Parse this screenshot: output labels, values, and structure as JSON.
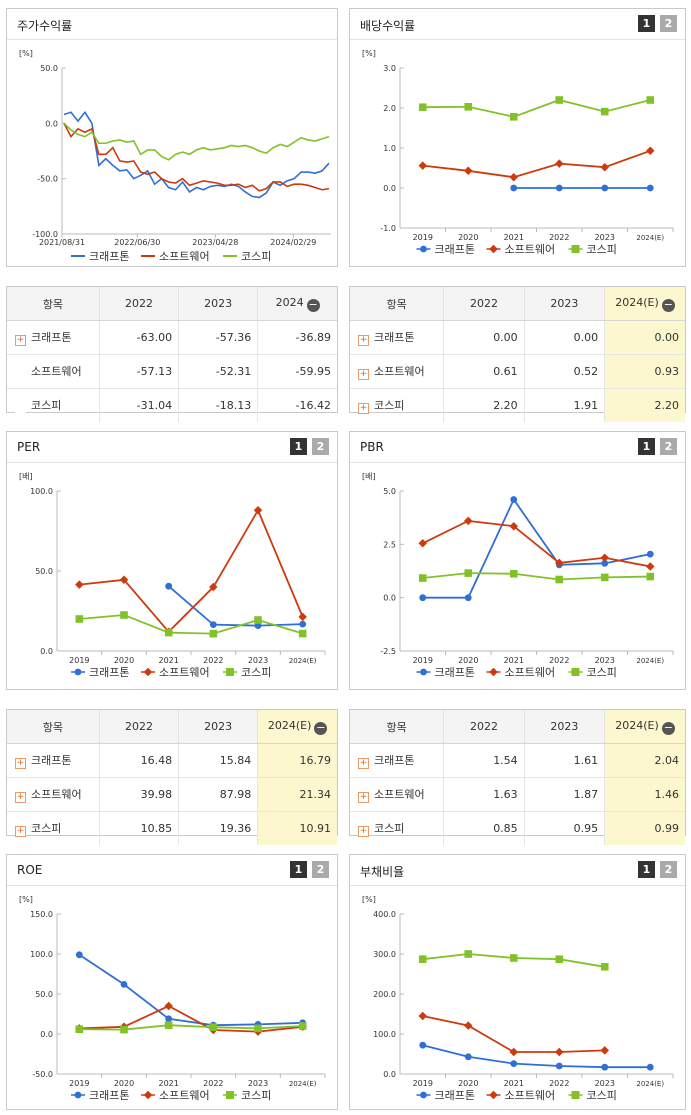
{
  "colors": {
    "kraf": "#2f6fd6",
    "soft": "#cc3a0e",
    "kospi": "#82c228"
  },
  "legend": [
    "크래프톤",
    "소프트웨어",
    "코스피"
  ],
  "pager": [
    "1",
    "2"
  ],
  "charts": [
    {
      "id": "stock",
      "title": "주가수익률",
      "pager": false,
      "chart_data": {
        "type": "line",
        "unit": "[%]",
        "ylim": [
          -100,
          50
        ],
        "yticks": [
          "50.0",
          "0.0",
          "-50.0",
          "-100.0"
        ],
        "xticks": [
          "2021/08/31",
          "2022/06/30",
          "2023/04/28",
          "2024/02/29"
        ],
        "series": [
          {
            "name": "크래프톤",
            "values": [
              8,
              10,
              2,
              10,
              0,
              -38,
              -32,
              -38,
              -43,
              -42,
              -50,
              -47,
              -43,
              -55,
              -50,
              -58,
              -60,
              -53,
              -62,
              -58,
              -60,
              -57,
              -56,
              -57,
              -55,
              -57,
              -62,
              -66,
              -67,
              -63,
              -53,
              -56,
              -52,
              -50,
              -44,
              -44,
              -45,
              -43,
              -36
            ]
          },
          {
            "name": "소프트웨어",
            "values": [
              0,
              -12,
              -5,
              -8,
              -5,
              -28,
              -28,
              -22,
              -34,
              -35,
              -34,
              -44,
              -46,
              -44,
              -50,
              -53,
              -54,
              -50,
              -56,
              -54,
              -52,
              -53,
              -54,
              -56,
              -56,
              -55,
              -58,
              -56,
              -61,
              -59,
              -53,
              -53,
              -57,
              -55,
              -55,
              -56,
              -58,
              -60,
              -59
            ]
          },
          {
            "name": "코스피",
            "values": [
              0,
              -6,
              -10,
              -12,
              -8,
              -18,
              -18,
              -16,
              -15,
              -17,
              -16,
              -28,
              -24,
              -24,
              -30,
              -33,
              -28,
              -26,
              -28,
              -24,
              -22,
              -24,
              -23,
              -22,
              -20,
              -21,
              -20,
              -22,
              -25,
              -27,
              -22,
              -19,
              -21,
              -17,
              -13,
              -15,
              -16,
              -14,
              -12
            ]
          }
        ]
      }
    },
    {
      "id": "div",
      "title": "배당수익률",
      "pager": true,
      "chart_data": {
        "type": "line",
        "unit": "[%]",
        "ylim": [
          -1,
          3
        ],
        "yticks": [
          "3.0",
          "2.0",
          "1.0",
          "0.0",
          "-1.0"
        ],
        "categories": [
          "2019",
          "2020",
          "2021",
          "2022",
          "2023",
          "2024(E)"
        ],
        "series": [
          {
            "name": "크래프톤",
            "values": [
              null,
              null,
              0.0,
              0.0,
              0.0,
              0.0
            ]
          },
          {
            "name": "소프트웨어",
            "values": [
              0.56,
              0.43,
              0.27,
              0.61,
              0.52,
              0.93
            ]
          },
          {
            "name": "코스피",
            "values": [
              2.02,
              2.03,
              1.78,
              2.2,
              1.91,
              2.2
            ]
          }
        ]
      }
    },
    {
      "id": "per",
      "title": "PER",
      "pager": true,
      "chart_data": {
        "type": "line",
        "unit": "[배]",
        "ylim": [
          0,
          100
        ],
        "yticks": [
          "100.0",
          "50.0",
          "0.0"
        ],
        "categories": [
          "2019",
          "2020",
          "2021",
          "2022",
          "2023",
          "2024(E)"
        ],
        "series": [
          {
            "name": "크래프톤",
            "values": [
              null,
              null,
              40.5,
              16.48,
              15.84,
              16.79
            ]
          },
          {
            "name": "소프트웨어",
            "values": [
              41.5,
              44.5,
              12.0,
              39.98,
              87.98,
              21.34
            ]
          },
          {
            "name": "코스피",
            "values": [
              20.0,
              22.5,
              11.5,
              10.85,
              19.36,
              10.91
            ]
          }
        ]
      }
    },
    {
      "id": "pbr",
      "title": "PBR",
      "pager": true,
      "chart_data": {
        "type": "line",
        "unit": "[배]",
        "ylim": [
          -2.5,
          5
        ],
        "yticks": [
          "5.0",
          "2.5",
          "0.0",
          "-2.5"
        ],
        "categories": [
          "2019",
          "2020",
          "2021",
          "2022",
          "2023",
          "2024(E)"
        ],
        "series": [
          {
            "name": "크래프톤",
            "values": [
              0.0,
              0.0,
              4.6,
              1.54,
              1.61,
              2.04
            ]
          },
          {
            "name": "소프트웨어",
            "values": [
              2.55,
              3.6,
              3.35,
              1.63,
              1.87,
              1.46
            ]
          },
          {
            "name": "코스피",
            "values": [
              0.92,
              1.15,
              1.12,
              0.85,
              0.95,
              0.99
            ]
          }
        ]
      }
    },
    {
      "id": "roe",
      "title": "ROE",
      "pager": true,
      "chart_data": {
        "type": "line",
        "unit": "[%]",
        "ylim": [
          -50,
          150
        ],
        "yticks": [
          "150.0",
          "100.0",
          "50.0",
          "0.0",
          "-50.0"
        ],
        "categories": [
          "2019",
          "2020",
          "2021",
          "2022",
          "2023",
          "2024(E)"
        ],
        "series": [
          {
            "name": "크래프톤",
            "values": [
              99,
              62,
              19,
              11,
              12,
              14
            ]
          },
          {
            "name": "소프트웨어",
            "values": [
              7,
              9,
              35,
              5,
              3,
              9
            ]
          },
          {
            "name": "코스피",
            "values": [
              6,
              5.5,
              11,
              8.5,
              7,
              10
            ]
          }
        ]
      }
    },
    {
      "id": "debt",
      "title": "부채비율",
      "pager": true,
      "chart_data": {
        "type": "line",
        "unit": "[%]",
        "ylim": [
          0,
          400
        ],
        "yticks": [
          "400.0",
          "300.0",
          "200.0",
          "100.0",
          "0.0"
        ],
        "categories": [
          "2019",
          "2020",
          "2021",
          "2022",
          "2023",
          "2024(E)"
        ],
        "series": [
          {
            "name": "크래프톤",
            "values": [
              72,
              43,
              26,
              20,
              17,
              17
            ]
          },
          {
            "name": "소프트웨어",
            "values": [
              145,
              121,
              55,
              55,
              59,
              null
            ]
          },
          {
            "name": "코스피",
            "values": [
              287,
              300,
              290,
              287,
              268,
              null
            ]
          }
        ]
      }
    }
  ],
  "tables": {
    "t1": {
      "head": [
        "항목",
        "2022",
        "2023",
        "2024"
      ],
      "highlight": false,
      "rows": [
        [
          "크래프톤",
          "-63.00",
          "-57.36",
          "-36.89"
        ],
        [
          "소프트웨어",
          "-57.13",
          "-52.31",
          "-59.95"
        ],
        [
          "코스피",
          "-31.04",
          "-18.13",
          "-16.42"
        ]
      ],
      "plus": [
        true,
        false,
        false
      ]
    },
    "t2": {
      "head": [
        "항목",
        "2022",
        "2023",
        "2024(E)"
      ],
      "highlight": true,
      "rows": [
        [
          "크래프톤",
          "0.00",
          "0.00",
          "0.00"
        ],
        [
          "소프트웨어",
          "0.61",
          "0.52",
          "0.93"
        ],
        [
          "코스피",
          "2.20",
          "1.91",
          "2.20"
        ]
      ],
      "plus": [
        true,
        true,
        true
      ]
    },
    "t3": {
      "head": [
        "항목",
        "2022",
        "2023",
        "2024(E)"
      ],
      "highlight": true,
      "rows": [
        [
          "크래프톤",
          "16.48",
          "15.84",
          "16.79"
        ],
        [
          "소프트웨어",
          "39.98",
          "87.98",
          "21.34"
        ],
        [
          "코스피",
          "10.85",
          "19.36",
          "10.91"
        ]
      ],
      "plus": [
        true,
        true,
        true
      ]
    },
    "t4": {
      "head": [
        "항목",
        "2022",
        "2023",
        "2024(E)"
      ],
      "highlight": true,
      "rows": [
        [
          "크래프톤",
          "1.54",
          "1.61",
          "2.04"
        ],
        [
          "소프트웨어",
          "1.63",
          "1.87",
          "1.46"
        ],
        [
          "코스피",
          "0.85",
          "0.95",
          "0.99"
        ]
      ],
      "plus": [
        true,
        true,
        true
      ]
    }
  }
}
